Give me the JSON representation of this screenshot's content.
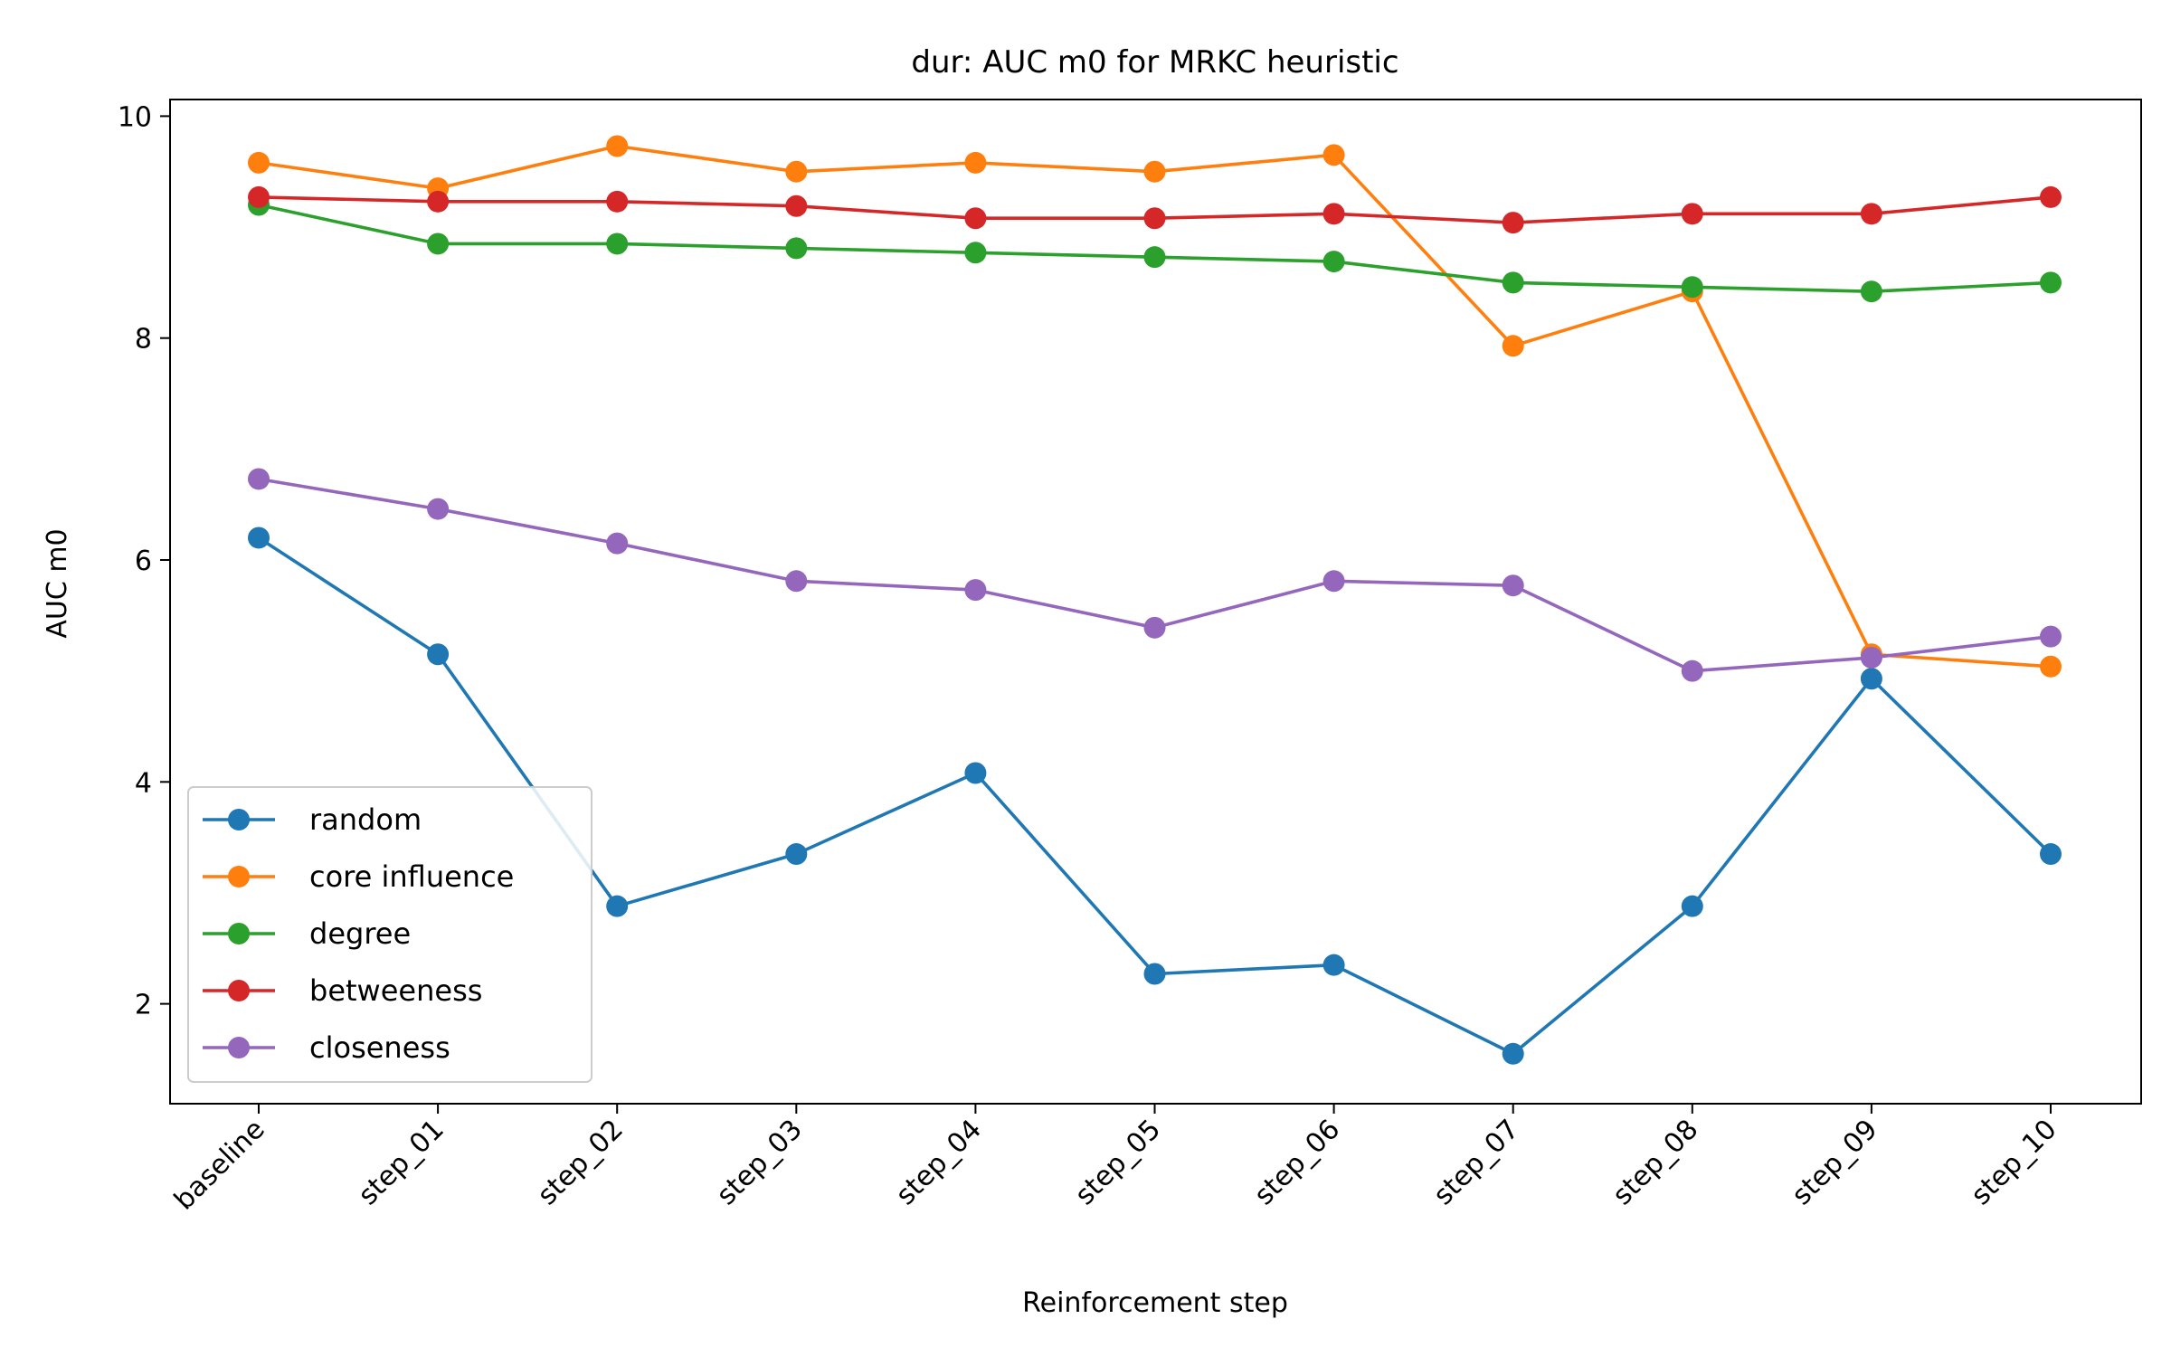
{
  "chart_data": {
    "type": "line",
    "title": "dur: AUC m0 for MRKC heuristic",
    "xlabel": "Reinforcement step",
    "ylabel": "AUC m0",
    "categories": [
      "baseline",
      "step_01",
      "step_02",
      "step_03",
      "step_04",
      "step_05",
      "step_06",
      "step_07",
      "step_08",
      "step_09",
      "step_10"
    ],
    "ylim": [
      1.1,
      10.15
    ],
    "yticks": [
      2,
      4,
      6,
      8,
      10
    ],
    "grid": false,
    "legend_position": "lower-left",
    "series": [
      {
        "name": "random",
        "color": "#1f77b4",
        "values": [
          6.2,
          5.15,
          2.88,
          3.35,
          4.08,
          2.27,
          2.35,
          1.55,
          2.88,
          4.93,
          3.35
        ]
      },
      {
        "name": "core influence",
        "color": "#ff7f0e",
        "values": [
          9.58,
          9.35,
          9.73,
          9.5,
          9.58,
          9.5,
          9.65,
          7.93,
          8.42,
          5.15,
          5.04
        ]
      },
      {
        "name": "degree",
        "color": "#2ca02c",
        "values": [
          9.2,
          8.85,
          8.85,
          8.81,
          8.77,
          8.73,
          8.69,
          8.5,
          8.46,
          8.42,
          8.5
        ]
      },
      {
        "name": "betweeness",
        "color": "#d62728",
        "values": [
          9.27,
          9.23,
          9.23,
          9.19,
          9.08,
          9.08,
          9.12,
          9.04,
          9.12,
          9.12,
          9.27
        ]
      },
      {
        "name": "closeness",
        "color": "#9467bd",
        "values": [
          6.73,
          6.46,
          6.15,
          5.81,
          5.73,
          5.39,
          5.81,
          5.77,
          5.0,
          5.12,
          5.31
        ]
      }
    ]
  }
}
